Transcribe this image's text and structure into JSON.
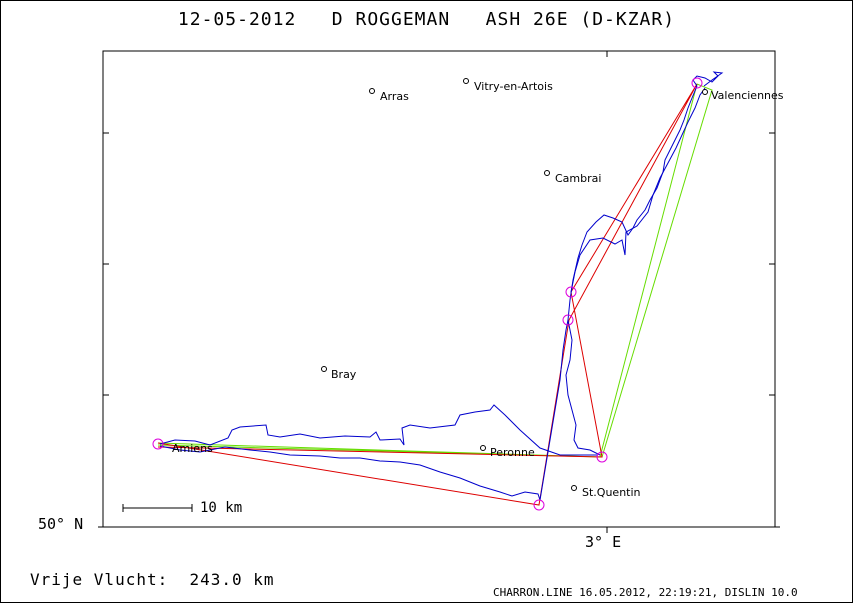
{
  "title": "12-05-2012   D ROGGEMAN   ASH 26E (D-KZAR)",
  "axes": {
    "lat_label": "50° N",
    "lon_label": "3° E"
  },
  "scale_bar": {
    "label": "10 km"
  },
  "distance": "Vrije Vlucht:  243.0 km",
  "footer": "CHARRON.LINE 16.05.2012, 22:19:21, DISLIN 10.0",
  "colors": {
    "track": "#0000cc",
    "task_red": "#dd0000",
    "task_green": "#66dd00",
    "turnpoint": "#dd00dd",
    "frame": "#000000"
  },
  "towns": [
    {
      "name": "Arras"
    },
    {
      "name": "Vitry-en-Artois"
    },
    {
      "name": "Valenciennes"
    },
    {
      "name": "Cambrai"
    },
    {
      "name": "Bray"
    },
    {
      "name": "Amiens"
    },
    {
      "name": "Peronne"
    },
    {
      "name": "St.Quentin"
    }
  ]
}
